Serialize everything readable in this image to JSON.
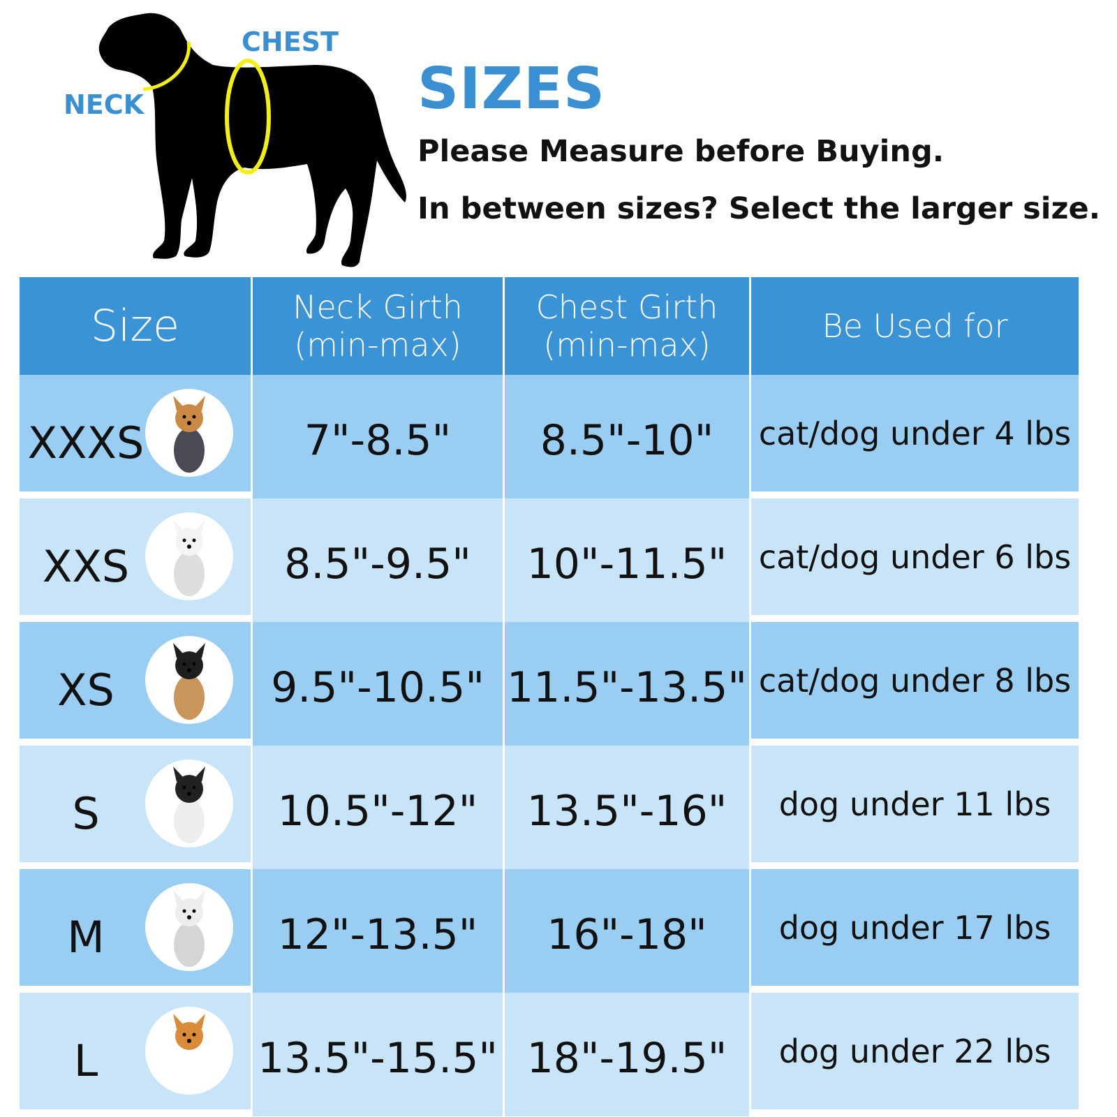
{
  "diagram": {
    "neck_label": "NECK",
    "chest_label": "CHEST"
  },
  "heading": {
    "title": "SIZES",
    "line1": "Please Measure before Buying.",
    "line2": "In between sizes? Select the larger size."
  },
  "table": {
    "headers": [
      "Size",
      "Neck Girth\n(min-max)",
      "Chest Girth\n(min-max)",
      "Be Used for"
    ],
    "header_lines": {
      "neck1": "Neck Girth",
      "neck2": "(min-max)",
      "chest1": "Chest Girth",
      "chest2": "(min-max)"
    },
    "rows": [
      {
        "size": "XXXS",
        "neck": "7\"-8.5\"",
        "chest": "8.5\"-10\"",
        "use": "cat/dog under 4 lbs",
        "dog": "yorkshire-terrier"
      },
      {
        "size": "XXS",
        "neck": "8.5\"-9.5\"",
        "chest": "10\"-11.5\"",
        "use": "cat/dog under 6 lbs",
        "dog": "pomeranian"
      },
      {
        "size": "XS",
        "neck": "9.5\"-10.5\"",
        "chest": "11.5\"-13.5\"",
        "use": "cat/dog under 8 lbs",
        "dog": "chihuahua"
      },
      {
        "size": "S",
        "neck": "10.5\"-12\"",
        "chest": "13.5\"-16\"",
        "use": "dog under 11 lbs",
        "dog": "boston-terrier"
      },
      {
        "size": "M",
        "neck": "12\"-13.5\"",
        "chest": "16\"-18\"",
        "use": "dog under 17 lbs",
        "dog": "bichon"
      },
      {
        "size": "L",
        "neck": "13.5\"-15.5\"",
        "chest": "18\"-19.5\"",
        "use": "dog under 22 lbs",
        "dog": "corgi"
      }
    ]
  },
  "colors": {
    "accent": "#3a8fd0",
    "header": "#3a93d4",
    "row_dark": "#99cdf2",
    "row_light": "#c8e4f8",
    "measure_ring": "#f2ee16"
  }
}
